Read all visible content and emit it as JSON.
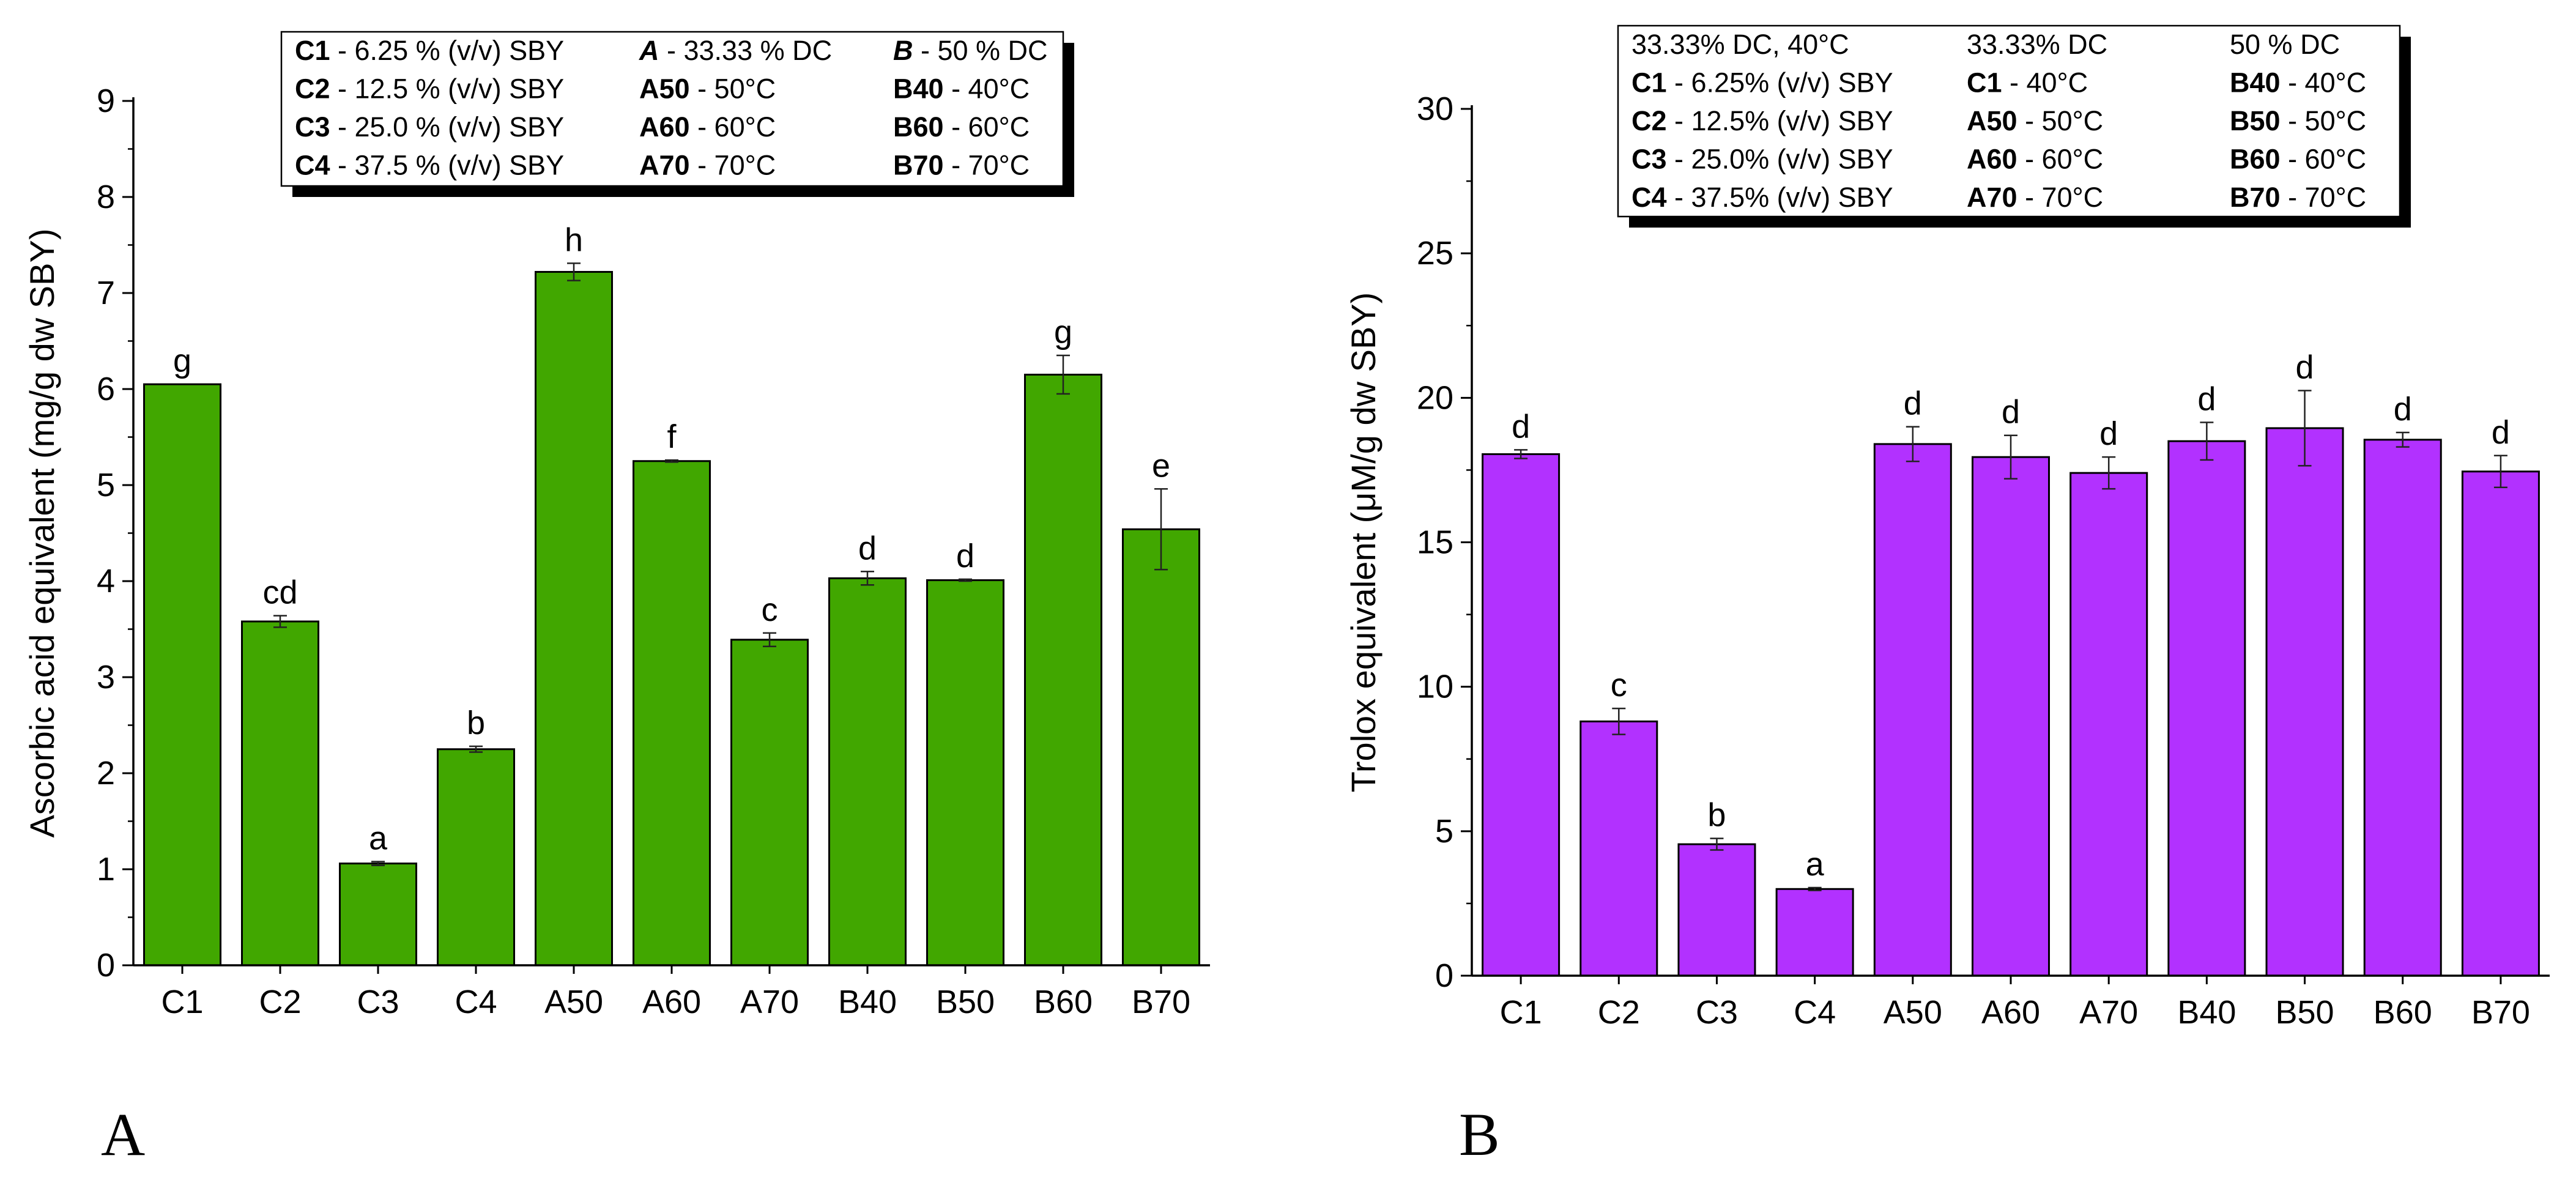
{
  "chart_data": [
    {
      "type": "bar",
      "panel_label": "A",
      "categories": [
        "C1",
        "C2",
        "C3",
        "C4",
        "A50",
        "A60",
        "A70",
        "B40",
        "B50",
        "B60",
        "B70"
      ],
      "values": [
        6.05,
        3.58,
        1.06,
        2.25,
        7.22,
        5.25,
        3.39,
        4.03,
        4.01,
        6.15,
        4.54
      ],
      "errors": [
        0.0,
        0.06,
        0.02,
        0.03,
        0.09,
        0.01,
        0.07,
        0.07,
        0.01,
        0.2,
        0.42
      ],
      "letters": [
        "g",
        "cd",
        "a",
        "b",
        "h",
        "f",
        "c",
        "d",
        "d",
        "g",
        "e"
      ],
      "ylabel": "Ascorbic acid equivalent (mg/g dw SBY)",
      "xlabel": "",
      "ylim": [
        0,
        9
      ],
      "yticks": [
        0,
        1,
        2,
        3,
        4,
        5,
        6,
        7,
        8,
        9
      ],
      "bar_color": "#41a700",
      "legend": {
        "rows": [
          [
            {
              "b": "C1",
              "r": " - 6.25 % (v/v) SBY"
            },
            {
              "b": "A",
              "r": " - 33.33 % DC",
              "italic": true
            },
            {
              "b": "B",
              "r": " - 50 % DC",
              "italic": true
            }
          ],
          [
            {
              "b": "C2",
              "r": " - 12.5 % (v/v) SBY"
            },
            {
              "b": "A50",
              "r": " - 50°C"
            },
            {
              "b": "B40",
              "r": " - 40°C"
            }
          ],
          [
            {
              "b": "C3",
              "r": " - 25.0 % (v/v) SBY"
            },
            {
              "b": "A60",
              "r": " - 60°C"
            },
            {
              "b": "B60",
              "r": " - 60°C"
            }
          ],
          [
            {
              "b": "C4",
              "r": " - 37.5 % (v/v) SBY"
            },
            {
              "b": "A70",
              "r": " - 70°C"
            },
            {
              "b": "B70",
              "r": " - 70°C"
            }
          ]
        ]
      }
    },
    {
      "type": "bar",
      "panel_label": "B",
      "categories": [
        "C1",
        "C2",
        "C3",
        "C4",
        "A50",
        "A60",
        "A70",
        "B40",
        "B50",
        "B60",
        "B70"
      ],
      "values": [
        18.05,
        8.8,
        4.55,
        3.0,
        18.4,
        17.95,
        17.4,
        18.5,
        18.95,
        18.55,
        17.45
      ],
      "errors": [
        0.15,
        0.45,
        0.2,
        0.05,
        0.6,
        0.75,
        0.55,
        0.65,
        1.3,
        0.25,
        0.55
      ],
      "letters": [
        "d",
        "c",
        "b",
        "a",
        "d",
        "d",
        "d",
        "d",
        "d",
        "d",
        "d"
      ],
      "ylabel": "Trolox equivalent (μM/g dw SBY)",
      "xlabel": "",
      "ylim": [
        0,
        30
      ],
      "yticks": [
        0,
        5,
        10,
        15,
        20,
        25,
        30
      ],
      "bar_color": "#b231ff",
      "legend": {
        "rows": [
          [
            {
              "b": "",
              "r": "33.33% DC, 40°C"
            },
            {
              "b": "",
              "r": "33.33% DC"
            },
            {
              "b": "",
              "r": "50 % DC"
            }
          ],
          [
            {
              "b": "C1",
              "r": " - 6.25% (v/v) SBY"
            },
            {
              "b": "C1",
              "r": " - 40°C"
            },
            {
              "b": "B40",
              "r": " - 40°C"
            }
          ],
          [
            {
              "b": "C2",
              "r": " - 12.5% (v/v) SBY"
            },
            {
              "b": "A50",
              "r": " - 50°C"
            },
            {
              "b": "B50",
              "r": " - 50°C"
            }
          ],
          [
            {
              "b": "C3",
              "r": " - 25.0% (v/v) SBY"
            },
            {
              "b": "A60",
              "r": " - 60°C"
            },
            {
              "b": "B60",
              "r": " - 60°C"
            }
          ],
          [
            {
              "b": "C4",
              "r": " - 37.5% (v/v) SBY"
            },
            {
              "b": "A70",
              "r": " - 70°C"
            },
            {
              "b": "B70",
              "r": " - 70°C"
            }
          ]
        ]
      }
    }
  ]
}
